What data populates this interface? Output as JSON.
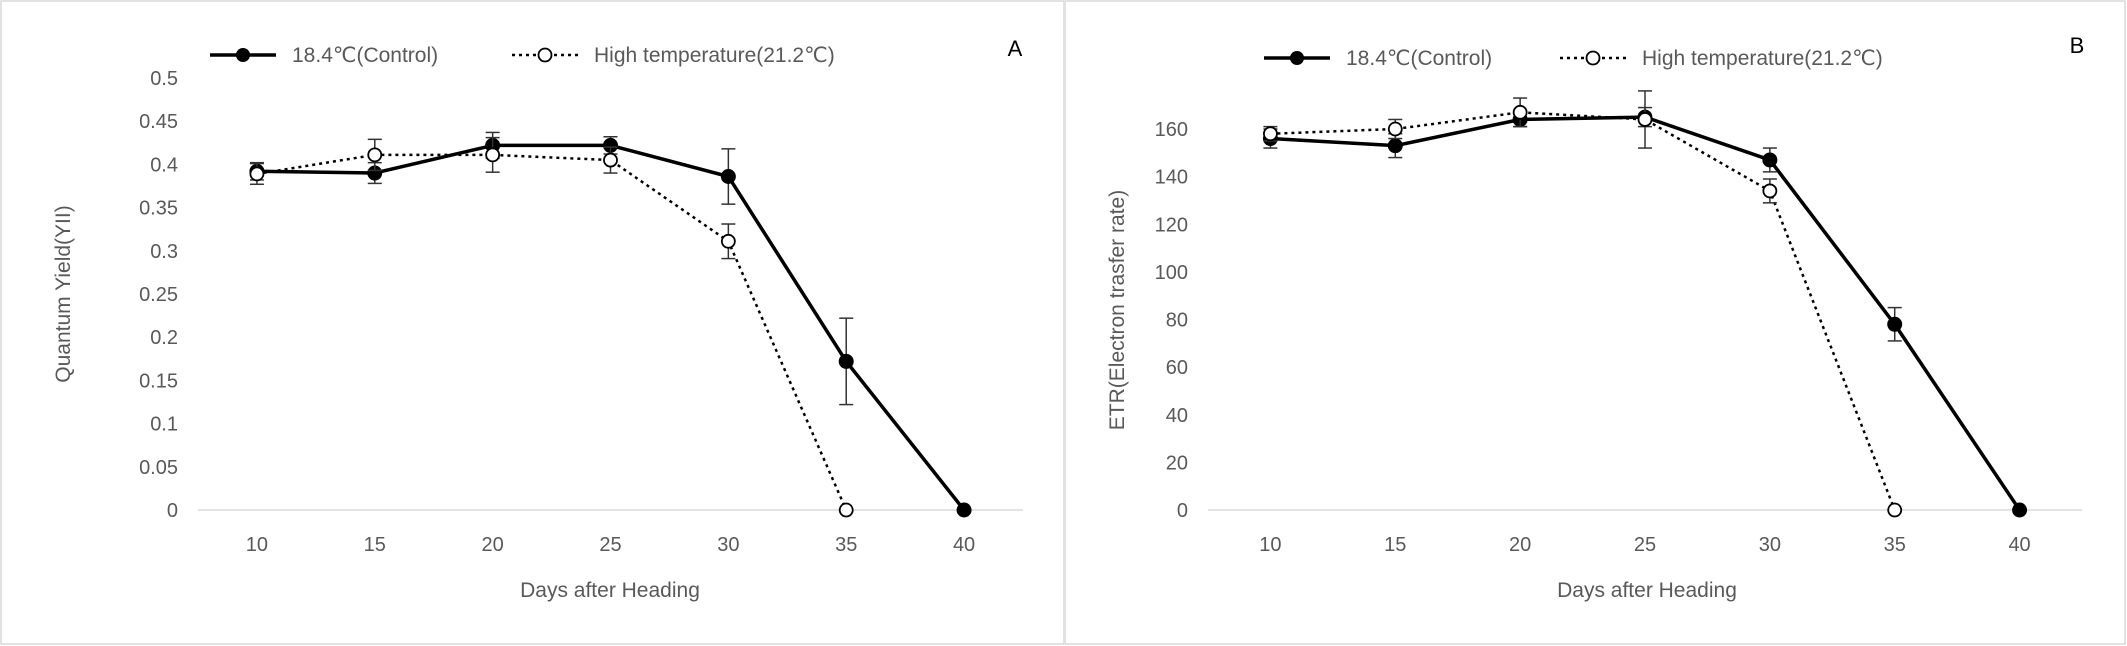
{
  "chart_data": [
    {
      "panel_label": "A",
      "type": "line",
      "xlabel": "Days after Heading",
      "ylabel": "Quantum Yield(YII)",
      "categories": [
        "10",
        "15",
        "20",
        "25",
        "30",
        "35",
        "40"
      ],
      "y_ticks": [
        "0",
        "0.05",
        "0.1",
        "0.15",
        "0.2",
        "0.25",
        "0.3",
        "0.35",
        "0.4",
        "0.45",
        "0.5"
      ],
      "ylim": [
        0,
        0.5
      ],
      "grid": false,
      "legend_position": "top",
      "series": [
        {
          "name": "18.4℃(Control)",
          "line_style": "solid",
          "marker": "filled-circle",
          "values": [
            0.392,
            0.39,
            0.422,
            0.422,
            0.386,
            0.172,
            0.0
          ],
          "error": [
            0.01,
            0.012,
            0.015,
            0.01,
            0.032,
            0.05,
            0.0
          ]
        },
        {
          "name": "High temperature(21.2℃)",
          "line_style": "dotted",
          "marker": "open-circle",
          "values": [
            0.389,
            0.411,
            0.411,
            0.405,
            0.311,
            0.0,
            null
          ],
          "error": [
            0.012,
            0.018,
            0.02,
            0.015,
            0.02,
            0.0,
            null
          ]
        }
      ]
    },
    {
      "panel_label": "B",
      "type": "line",
      "xlabel": "Days after Heading",
      "ylabel": "ETR(Electron trasfer rate)",
      "categories": [
        "10",
        "15",
        "20",
        "25",
        "30",
        "35",
        "40"
      ],
      "y_ticks": [
        "0",
        "20",
        "40",
        "60",
        "80",
        "100",
        "120",
        "140",
        "160"
      ],
      "ylim": [
        0,
        180
      ],
      "grid": false,
      "legend_position": "top",
      "series": [
        {
          "name": "18.4℃(Control)",
          "line_style": "solid",
          "marker": "filled-circle",
          "values": [
            156,
            153,
            164,
            165,
            147,
            78,
            0
          ],
          "error": [
            4,
            5,
            3,
            4,
            5,
            7,
            0
          ]
        },
        {
          "name": "High temperature(21.2℃)",
          "line_style": "dotted",
          "marker": "open-circle",
          "values": [
            158,
            160,
            167,
            164,
            134,
            0,
            null
          ],
          "error": [
            3,
            4,
            6,
            12,
            5,
            0,
            null
          ]
        }
      ]
    }
  ]
}
